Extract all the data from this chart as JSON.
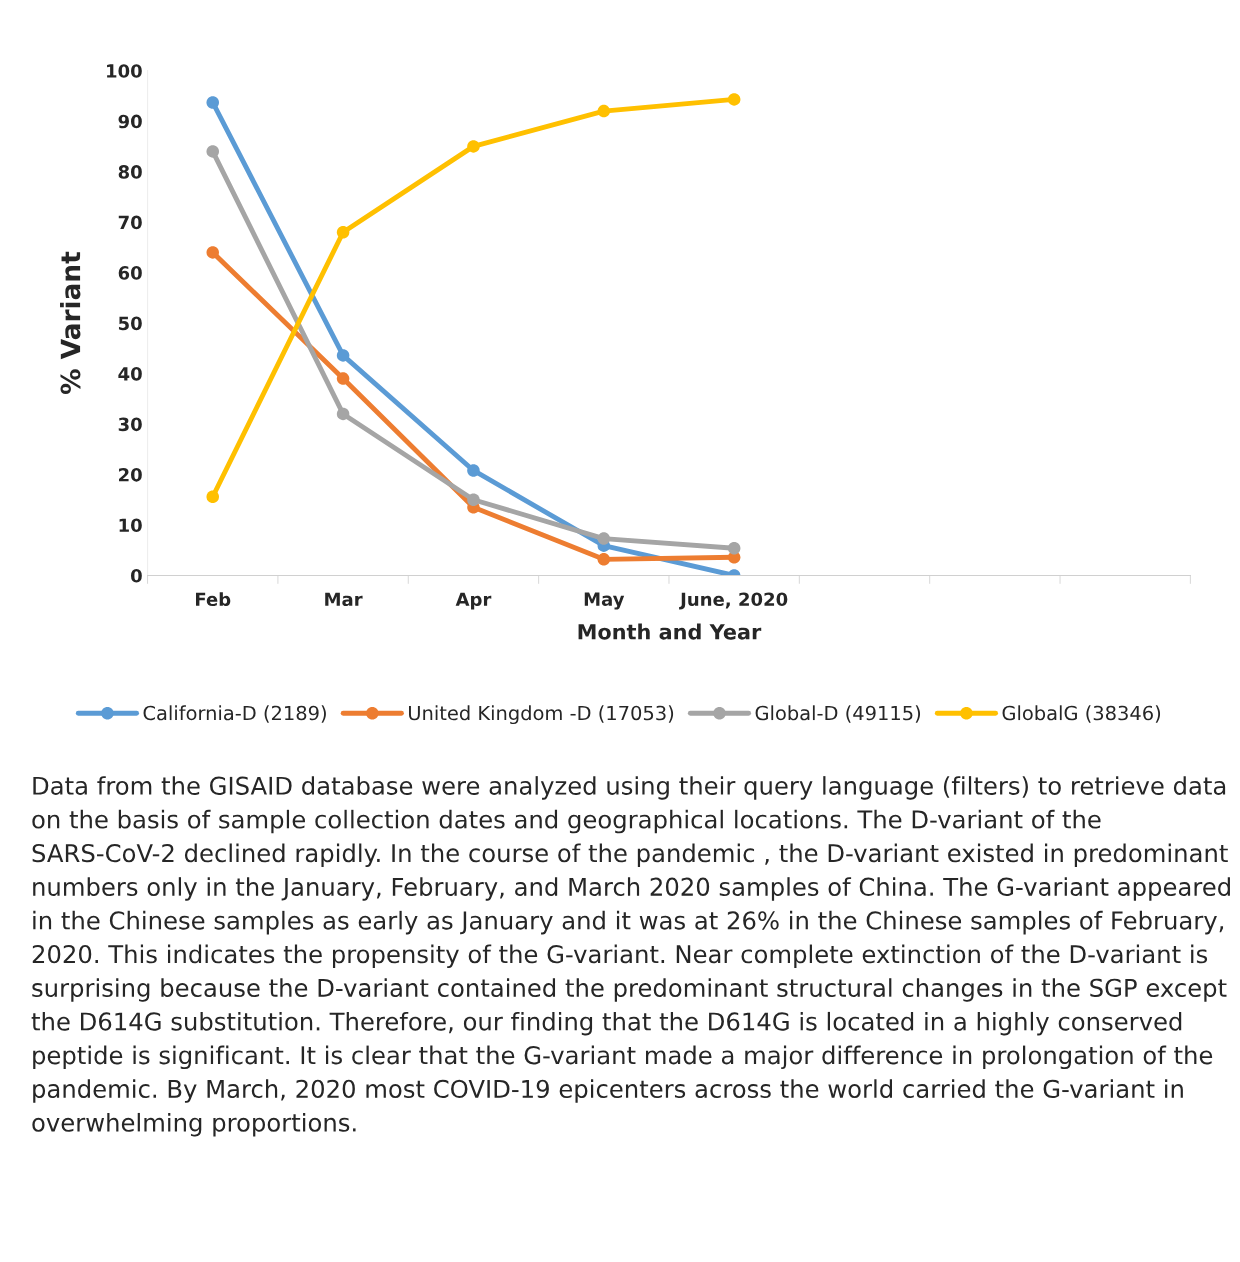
{
  "chart_data": {
    "type": "line",
    "xlabel": "Month and Year",
    "ylabel": "% Variant",
    "categories": [
      "Feb",
      "Mar",
      "Apr",
      "May",
      "June, 2020",
      null,
      null,
      null
    ],
    "series": [
      {
        "name": "California-D (2189)",
        "color": "#5b9bd5",
        "values": [
          93.7,
          43.6,
          20.8,
          5.9,
          0,
          null,
          null,
          null
        ]
      },
      {
        "name": "United Kingdom -D (17053)",
        "color": "#ed7d31",
        "values": [
          64,
          39,
          13.5,
          3.2,
          3.6,
          null,
          null,
          null
        ]
      },
      {
        "name": "Global-D (49115)",
        "color": "#a5a5a5",
        "values": [
          84,
          32,
          15,
          7.3,
          5.4,
          null,
          null,
          null
        ]
      },
      {
        "name": "GlobalG (38346)",
        "color": "#ffc000",
        "values": [
          15.6,
          68,
          85,
          92,
          94.3,
          null,
          null,
          null
        ]
      }
    ],
    "ylim": [
      0,
      100
    ],
    "yticks": [
      0,
      10,
      20,
      30,
      40,
      50,
      60,
      70,
      80,
      90,
      100
    ],
    "grid": false,
    "legend": "bottom",
    "marker": "circle",
    "line_style": "solid",
    "annotations": [
      "Data from the GISAID database were analyzed using their query language (filters) to retrieve data on the basis of sample collection dates and geographical locations. The D-variant of the SARS-CoV-2 declined rapidly. In the course of the pandemic , the D-variant existed in predominant numbers only in the January, February, and March 2020 samples of China. The G-variant appeared in the Chinese samples as early as January and it was at 26% in the Chinese samples of February, 2020. This indicates the propensity of the G-variant. Near complete extinction of the D-variant is surprising because the D-variant contained the predominant structural changes in the SGP except the D614G substitution. Therefore, our finding that the D614G is located in a highly conserved peptide is significant. It is clear that the G-variant made a major difference in prolongation of the pandemic. By March, 2020 most COVID-19 epicenters across the world carried the G-variant in overwhelming proportions."
    ]
  }
}
